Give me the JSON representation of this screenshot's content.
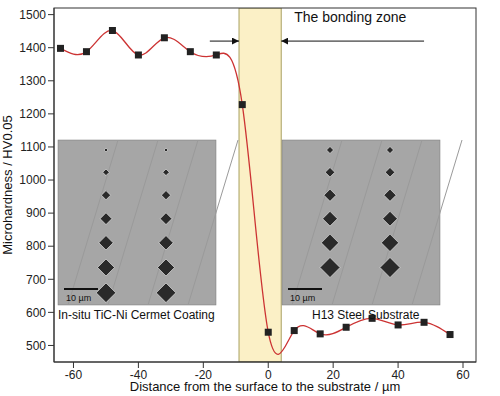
{
  "chart_data": {
    "type": "line",
    "x_label": "Distance from the surface to the substrate / µm",
    "y_label": "Microhardness / HV0.05",
    "x": [
      -64,
      -56,
      -48,
      -40,
      -32,
      -24,
      -16,
      -8,
      0,
      8,
      16,
      24,
      32,
      40,
      48,
      56
    ],
    "values": [
      1398,
      1388,
      1452,
      1378,
      1430,
      1388,
      1378,
      1228,
      540,
      545,
      535,
      555,
      582,
      562,
      570,
      533
    ],
    "color": "#cc3333",
    "marker": "square",
    "xlim": [
      -66,
      64
    ],
    "xticks": [
      -60,
      -40,
      -20,
      0,
      20,
      40,
      60
    ],
    "ylim": [
      450,
      1520
    ],
    "yticks": [
      500,
      600,
      700,
      800,
      900,
      1000,
      1100,
      1200,
      1300,
      1400,
      1500
    ],
    "grid": false,
    "bonding_zone": [
      -9,
      4
    ],
    "bonding_zone_label": "The bonding zone",
    "insets": [
      {
        "caption": "In-situ TiC-Ni Cermet Coating",
        "scale_bar": "10 µm"
      },
      {
        "caption": "H13 Steel Substrate",
        "scale_bar": "10 µm"
      }
    ]
  }
}
